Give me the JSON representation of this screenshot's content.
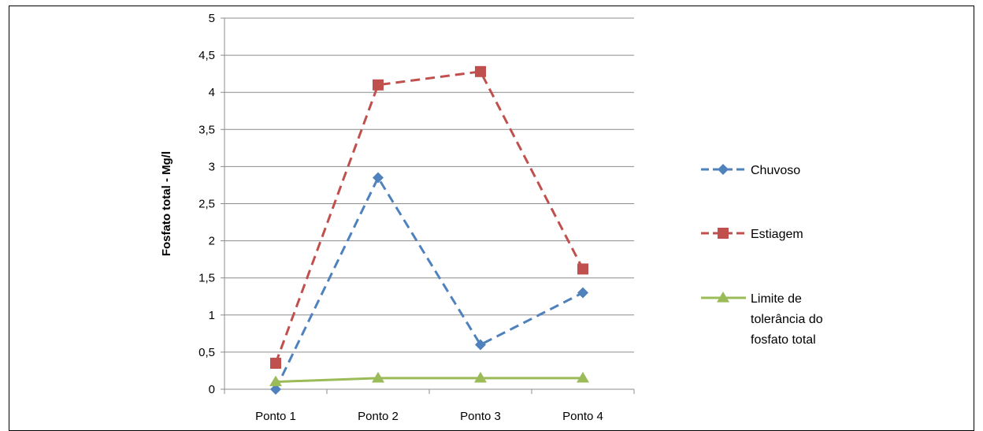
{
  "chart_data": {
    "type": "line",
    "title": "",
    "xlabel": "",
    "ylabel": "Fosfato total - Mg/l",
    "categories": [
      "Ponto 1",
      "Ponto 2",
      "Ponto 3",
      "Ponto 4"
    ],
    "ylim": [
      0,
      5
    ],
    "yticks": [
      0,
      0.5,
      1,
      1.5,
      2,
      2.5,
      3,
      3.5,
      4,
      4.5,
      5
    ],
    "ytick_labels": [
      "0",
      "0,5",
      "1",
      "1,5",
      "2",
      "2,5",
      "3",
      "3,5",
      "4",
      "4,5",
      "5"
    ],
    "grid": true,
    "legend_position": "right",
    "series": [
      {
        "name": "Chuvoso",
        "legend_lines": [
          "Chuvoso"
        ],
        "values": [
          0,
          2.85,
          0.6,
          1.3
        ],
        "color": "#4F81BD",
        "dashed": true,
        "marker": "diamond"
      },
      {
        "name": "Estiagem",
        "legend_lines": [
          "Estiagem"
        ],
        "values": [
          0.35,
          4.1,
          4.28,
          1.62
        ],
        "color": "#C0504D",
        "dashed": true,
        "marker": "square"
      },
      {
        "name": "Limite de tolerância do fosfato total",
        "legend_lines": [
          "Limite de",
          "tolerância do",
          "fosfato total"
        ],
        "values": [
          0.1,
          0.15,
          0.15,
          0.15
        ],
        "color": "#9BBB59",
        "dashed": false,
        "marker": "triangle"
      }
    ]
  }
}
